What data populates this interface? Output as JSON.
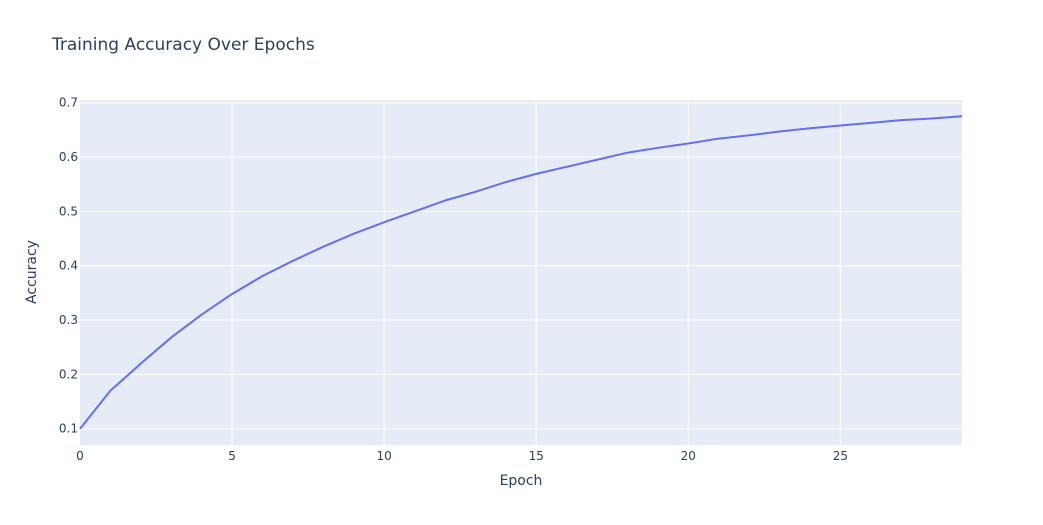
{
  "chart_data": {
    "type": "line",
    "title": "Training Accuracy Over Epochs",
    "xlabel": "Epoch",
    "ylabel": "Accuracy",
    "xlim": [
      0,
      29
    ],
    "ylim": [
      0.07,
      0.705
    ],
    "x_ticks": [
      0,
      5,
      10,
      15,
      20,
      25
    ],
    "y_ticks": [
      0.1,
      0.2,
      0.3,
      0.4,
      0.5,
      0.6,
      0.7
    ],
    "x_tick_labels": [
      "0",
      "5",
      "10",
      "15",
      "20",
      "25"
    ],
    "y_tick_labels": [
      "0.1",
      "0.2",
      "0.3",
      "0.4",
      "0.5",
      "0.6",
      "0.7"
    ],
    "grid": true,
    "colors": {
      "plot_bg": "#e5ecf6",
      "grid": "#ffffff",
      "line": "#636efa",
      "text": "#2a3f5f"
    },
    "series": [
      {
        "x": [
          0,
          1,
          2,
          3,
          4,
          5,
          6,
          7,
          8,
          9,
          10,
          11,
          12,
          13,
          14,
          15,
          16,
          17,
          18,
          19,
          20,
          21,
          22,
          23,
          24,
          25,
          26,
          27,
          28,
          29
        ],
        "values": [
          0.1,
          0.17,
          0.22,
          0.268,
          0.31,
          0.348,
          0.381,
          0.409,
          0.435,
          0.459,
          0.48,
          0.5,
          0.52,
          0.536,
          0.554,
          0.569,
          0.582,
          0.595,
          0.608,
          0.617,
          0.625,
          0.634,
          0.64,
          0.647,
          0.653,
          0.658,
          0.663,
          0.668,
          0.671,
          0.675
        ]
      }
    ]
  }
}
